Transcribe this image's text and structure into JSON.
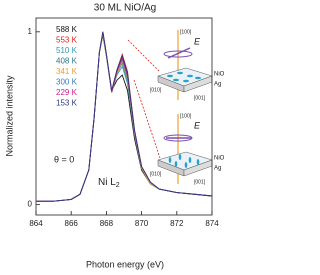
{
  "chart_data": {
    "type": "line",
    "title": "30 ML NiO/Ag",
    "x_label": "Photon energy (eV)",
    "y_label": "Normalized intensity",
    "x": [
      864,
      865,
      866,
      866.5,
      867,
      867.3,
      867.6,
      867.8,
      868.0,
      868.3,
      868.6,
      868.9,
      869.2,
      869.6,
      870,
      870.5,
      871,
      872,
      873,
      874
    ],
    "series": [
      {
        "name": "588 K",
        "color": "#111111",
        "values": [
          0.02,
          0.02,
          0.03,
          0.06,
          0.2,
          0.5,
          0.88,
          0.98,
          0.86,
          0.66,
          0.72,
          0.75,
          0.66,
          0.38,
          0.2,
          0.12,
          0.09,
          0.07,
          0.06,
          0.05
        ]
      },
      {
        "name": "553 K",
        "color": "#e0201b",
        "values": [
          0.02,
          0.02,
          0.03,
          0.06,
          0.2,
          0.5,
          0.88,
          0.99,
          0.87,
          0.66,
          0.78,
          0.87,
          0.77,
          0.43,
          0.22,
          0.13,
          0.09,
          0.07,
          0.06,
          0.05
        ]
      },
      {
        "name": "510 K",
        "color": "#3399b0",
        "values": [
          0.02,
          0.02,
          0.03,
          0.06,
          0.2,
          0.5,
          0.88,
          0.99,
          0.86,
          0.65,
          0.75,
          0.8,
          0.7,
          0.4,
          0.21,
          0.12,
          0.09,
          0.07,
          0.06,
          0.05
        ]
      },
      {
        "name": "408 K",
        "color": "#2a7a8a",
        "values": [
          0.02,
          0.02,
          0.03,
          0.06,
          0.2,
          0.5,
          0.88,
          0.99,
          0.86,
          0.65,
          0.76,
          0.82,
          0.72,
          0.41,
          0.21,
          0.12,
          0.09,
          0.07,
          0.06,
          0.05
        ]
      },
      {
        "name": "341 K",
        "color": "#f0a030",
        "values": [
          0.02,
          0.02,
          0.03,
          0.06,
          0.2,
          0.5,
          0.88,
          0.99,
          0.86,
          0.65,
          0.76,
          0.83,
          0.73,
          0.41,
          0.21,
          0.12,
          0.09,
          0.07,
          0.06,
          0.05
        ]
      },
      {
        "name": "300 K",
        "color": "#3a7ac0",
        "values": [
          0.02,
          0.02,
          0.03,
          0.06,
          0.2,
          0.5,
          0.88,
          1.0,
          0.87,
          0.65,
          0.77,
          0.84,
          0.74,
          0.42,
          0.22,
          0.13,
          0.09,
          0.07,
          0.06,
          0.05
        ]
      },
      {
        "name": "229 K",
        "color": "#d02090",
        "values": [
          0.02,
          0.02,
          0.03,
          0.06,
          0.2,
          0.5,
          0.88,
          1.0,
          0.87,
          0.65,
          0.77,
          0.85,
          0.75,
          0.42,
          0.22,
          0.13,
          0.09,
          0.07,
          0.06,
          0.05
        ]
      },
      {
        "name": "153 K",
        "color": "#2a3a80",
        "values": [
          0.02,
          0.02,
          0.03,
          0.06,
          0.2,
          0.5,
          0.88,
          1.0,
          0.87,
          0.66,
          0.78,
          0.86,
          0.76,
          0.43,
          0.22,
          0.13,
          0.09,
          0.07,
          0.06,
          0.05
        ]
      }
    ],
    "xlim": [
      864,
      874
    ],
    "xticks": [
      864,
      866,
      868,
      870,
      872,
      874
    ],
    "ylim": [
      -0.06,
      1.08
    ],
    "yticks": [
      0,
      1
    ],
    "legend": "upper left",
    "annotation": "θ = 0",
    "edge_label": "Ni L",
    "edge_label_subscript": "2",
    "inset_labels": {
      "axis_top": "[100]",
      "field": "E",
      "film": "NiO",
      "substrate": "Ag",
      "axis_left": "[010]",
      "axis_right": "[001]"
    }
  }
}
